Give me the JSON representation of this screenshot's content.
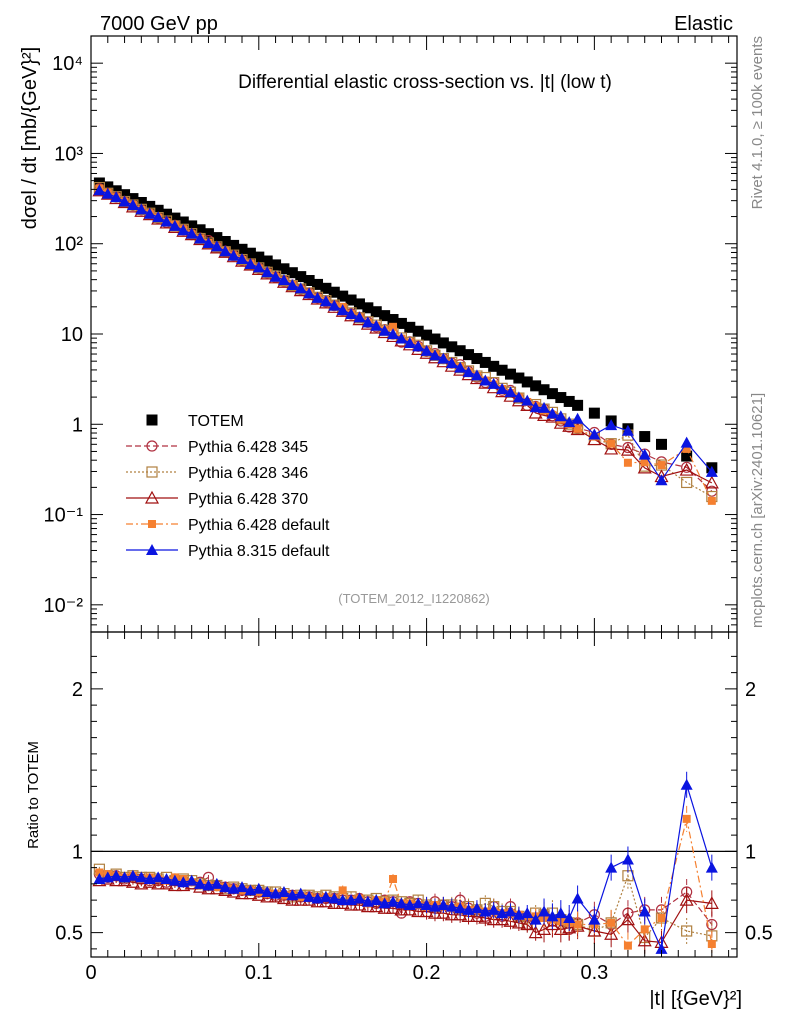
{
  "header": {
    "left": "7000 GeV pp",
    "right": "Elastic",
    "side_top": "Rivet 4.1.0, ≥ 100k events",
    "side_bottom": "mcplots.cern.ch [arXiv:2401.10621]"
  },
  "chart_data": [
    {
      "type": "scatter",
      "title": "Differential elastic cross-section vs. |t| (low t)",
      "analysis_tag": "(TOTEM_2012_I1220862)",
      "ylabel": "dσel / dt [mb/{GeV}²]",
      "yscale": "log",
      "ylim": [
        0.005,
        20000
      ],
      "xlim": [
        0,
        0.385
      ],
      "y_ticks": [
        {
          "value": 0.01,
          "label": "10⁻²"
        },
        {
          "value": 0.1,
          "label": "10⁻¹"
        },
        {
          "value": 1,
          "label": "1"
        },
        {
          "value": 10,
          "label": "10"
        },
        {
          "value": 100,
          "label": "10²"
        },
        {
          "value": 1000,
          "label": "10³"
        },
        {
          "value": 10000,
          "label": "10⁴"
        }
      ],
      "legend_position": "bottom-left",
      "totem_model": {
        "y0": 520,
        "slope": 19.9
      },
      "series": [
        {
          "name": "TOTEM",
          "color": "#000000",
          "marker": "square-filled",
          "line": "none",
          "ref": true
        },
        {
          "name": "Pythia 6.428 345",
          "color": "#b03040",
          "marker": "circle-open",
          "line": "dashed"
        },
        {
          "name": "Pythia 6.428 346",
          "color": "#b08040",
          "marker": "square-open",
          "line": "dotted"
        },
        {
          "name": "Pythia 6.428 370",
          "color": "#a01010",
          "marker": "triangle-open",
          "line": "solid"
        },
        {
          "name": "Pythia 6.428 default",
          "color": "#f58030",
          "marker": "square-small-filled",
          "line": "dashdot"
        },
        {
          "name": "Pythia 8.315 default",
          "color": "#0a14e0",
          "marker": "triangle-filled",
          "line": "solid"
        }
      ]
    },
    {
      "type": "line",
      "ylabel": "Ratio to TOTEM",
      "xlabel": "|t| [{GeV}²]",
      "ylim": [
        0.35,
        2.35
      ],
      "xlim": [
        0,
        0.385
      ],
      "x_ticks": [
        {
          "value": 0,
          "label": "0"
        },
        {
          "value": 0.1,
          "label": "0.1"
        },
        {
          "value": 0.2,
          "label": "0.2"
        },
        {
          "value": 0.3,
          "label": "0.3"
        }
      ],
      "y_ticks": [
        {
          "value": 0.5,
          "label": "0.5"
        },
        {
          "value": 1,
          "label": "1"
        },
        {
          "value": 2,
          "label": "2"
        }
      ],
      "reference_line": 1,
      "x": [
        0.005,
        0.01,
        0.015,
        0.02,
        0.025,
        0.03,
        0.035,
        0.04,
        0.045,
        0.05,
        0.055,
        0.06,
        0.065,
        0.07,
        0.075,
        0.08,
        0.085,
        0.09,
        0.095,
        0.1,
        0.105,
        0.11,
        0.115,
        0.12,
        0.125,
        0.13,
        0.135,
        0.14,
        0.145,
        0.15,
        0.155,
        0.16,
        0.165,
        0.17,
        0.175,
        0.18,
        0.185,
        0.19,
        0.195,
        0.2,
        0.205,
        0.21,
        0.215,
        0.22,
        0.225,
        0.23,
        0.235,
        0.24,
        0.245,
        0.25,
        0.255,
        0.26,
        0.265,
        0.27,
        0.275,
        0.28,
        0.285,
        0.29,
        0.3,
        0.31,
        0.32,
        0.33,
        0.34,
        0.355,
        0.37
      ],
      "ratios": {
        "Pythia 6.428 345": [
          0.86,
          0.84,
          0.85,
          0.83,
          0.84,
          0.83,
          0.82,
          0.82,
          0.81,
          0.83,
          0.82,
          0.8,
          0.81,
          0.84,
          0.79,
          0.78,
          0.77,
          0.76,
          0.76,
          0.75,
          0.74,
          0.73,
          0.73,
          0.73,
          0.72,
          0.72,
          0.71,
          0.71,
          0.71,
          0.7,
          0.7,
          0.71,
          0.69,
          0.68,
          0.7,
          0.69,
          0.62,
          0.69,
          0.68,
          0.66,
          0.69,
          0.67,
          0.66,
          0.7,
          0.65,
          0.62,
          0.6,
          0.66,
          0.6,
          0.66,
          0.6,
          0.55,
          0.59,
          0.61,
          0.57,
          0.55,
          0.52,
          0.56,
          0.61,
          0.55,
          0.62,
          0.64,
          0.64,
          0.75,
          0.55
        ],
        "Pythia 6.428 346": [
          0.89,
          0.85,
          0.86,
          0.84,
          0.85,
          0.84,
          0.84,
          0.83,
          0.84,
          0.82,
          0.83,
          0.82,
          0.8,
          0.79,
          0.79,
          0.77,
          0.78,
          0.77,
          0.76,
          0.76,
          0.75,
          0.75,
          0.74,
          0.72,
          0.73,
          0.73,
          0.72,
          0.73,
          0.72,
          0.71,
          0.72,
          0.7,
          0.7,
          0.71,
          0.69,
          0.7,
          0.69,
          0.68,
          0.7,
          0.67,
          0.66,
          0.67,
          0.67,
          0.65,
          0.66,
          0.64,
          0.68,
          0.66,
          0.63,
          0.63,
          0.6,
          0.55,
          0.62,
          0.61,
          0.62,
          0.58,
          0.56,
          0.55,
          0.51,
          0.56,
          0.85,
          0.47,
          0.59,
          0.51,
          0.48
        ],
        "Pythia 6.428 370": [
          0.82,
          0.83,
          0.82,
          0.82,
          0.81,
          0.8,
          0.81,
          0.8,
          0.8,
          0.79,
          0.79,
          0.8,
          0.78,
          0.77,
          0.77,
          0.76,
          0.75,
          0.74,
          0.74,
          0.73,
          0.72,
          0.72,
          0.71,
          0.7,
          0.7,
          0.7,
          0.69,
          0.69,
          0.68,
          0.68,
          0.67,
          0.67,
          0.66,
          0.66,
          0.65,
          0.65,
          0.64,
          0.64,
          0.63,
          0.63,
          0.62,
          0.62,
          0.61,
          0.61,
          0.6,
          0.6,
          0.59,
          0.58,
          0.58,
          0.57,
          0.56,
          0.55,
          0.5,
          0.52,
          0.55,
          0.52,
          0.53,
          0.54,
          0.51,
          0.49,
          0.58,
          0.45,
          0.44,
          0.7,
          0.68
        ],
        "Pythia 6.428 default": [
          0.87,
          0.86,
          0.85,
          0.84,
          0.85,
          0.83,
          0.84,
          0.83,
          0.82,
          0.84,
          0.83,
          0.81,
          0.8,
          0.79,
          0.78,
          0.78,
          0.77,
          0.76,
          0.76,
          0.75,
          0.74,
          0.74,
          0.73,
          0.73,
          0.72,
          0.72,
          0.71,
          0.72,
          0.71,
          0.76,
          0.7,
          0.71,
          0.68,
          0.7,
          0.69,
          0.83,
          0.68,
          0.68,
          0.67,
          0.66,
          0.67,
          0.66,
          0.65,
          0.66,
          0.64,
          0.64,
          0.63,
          0.63,
          0.62,
          0.62,
          0.61,
          0.6,
          0.6,
          0.59,
          0.58,
          0.57,
          0.56,
          0.55,
          0.55,
          0.56,
          0.42,
          0.52,
          0.59,
          1.2,
          0.43
        ],
        "Pythia 8.315 default": [
          0.83,
          0.84,
          0.85,
          0.84,
          0.85,
          0.84,
          0.83,
          0.84,
          0.83,
          0.82,
          0.81,
          0.82,
          0.8,
          0.79,
          0.8,
          0.78,
          0.77,
          0.78,
          0.76,
          0.77,
          0.75,
          0.74,
          0.75,
          0.73,
          0.74,
          0.72,
          0.71,
          0.72,
          0.71,
          0.7,
          0.7,
          0.71,
          0.69,
          0.7,
          0.68,
          0.69,
          0.68,
          0.67,
          0.68,
          0.67,
          0.66,
          0.67,
          0.66,
          0.65,
          0.64,
          0.65,
          0.63,
          0.64,
          0.62,
          0.63,
          0.61,
          0.62,
          0.58,
          0.63,
          0.6,
          0.62,
          0.59,
          0.71,
          0.58,
          0.9,
          0.95,
          0.63,
          0.4,
          1.41,
          0.9
        ]
      }
    }
  ]
}
